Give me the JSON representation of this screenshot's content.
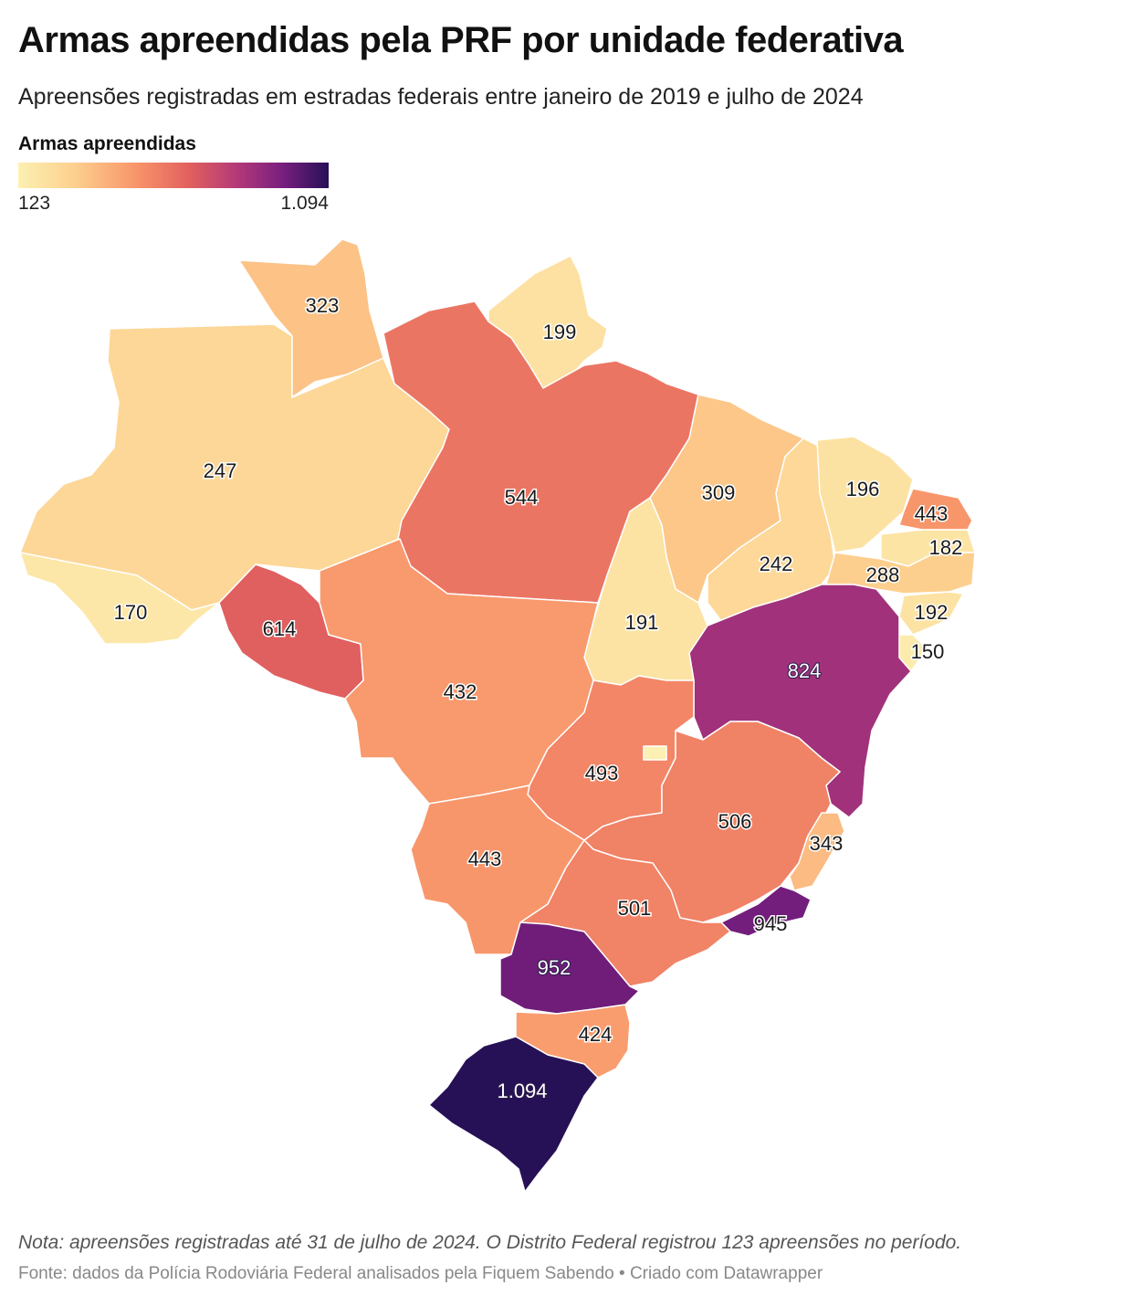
{
  "title": "Armas apreendidas pela PRF por unidade federativa",
  "subtitle": "Apreensões registradas em estradas federais entre janeiro de 2019 e julho de 2024",
  "legend": {
    "title": "Armas apreendidas",
    "min_label": "123",
    "max_label": "1.094",
    "min": 123,
    "max": 1094,
    "colors": [
      "#fcf0b2",
      "#fdd08f",
      "#f8956a",
      "#e2605e",
      "#b53a78",
      "#7a1f7f",
      "#261056"
    ]
  },
  "map": {
    "region": "Brasil",
    "states": {
      "RR": {
        "value": 323,
        "label": "323"
      },
      "AP": {
        "value": 199,
        "label": "199"
      },
      "AM": {
        "value": 247,
        "label": "247"
      },
      "PA": {
        "value": 544,
        "label": "544"
      },
      "MA": {
        "value": 309,
        "label": "309"
      },
      "CE": {
        "value": 196,
        "label": "196"
      },
      "RN": {
        "value": 443,
        "label": "443"
      },
      "PB": {
        "value": 182,
        "label": "182"
      },
      "PI": {
        "value": 242,
        "label": "242"
      },
      "PE": {
        "value": 288,
        "label": "288"
      },
      "AL": {
        "value": 192,
        "label": "192"
      },
      "SE": {
        "value": 150,
        "label": "150"
      },
      "AC": {
        "value": 170,
        "label": "170"
      },
      "RO": {
        "value": 614,
        "label": "614"
      },
      "TO": {
        "value": 191,
        "label": "191"
      },
      "BA": {
        "value": 824,
        "label": "824"
      },
      "MT": {
        "value": 432,
        "label": "432"
      },
      "GO": {
        "value": 493,
        "label": "493"
      },
      "DF": {
        "value": 123
      },
      "MG": {
        "value": 506,
        "label": "506"
      },
      "ES": {
        "value": 343,
        "label": "343"
      },
      "MS": {
        "value": 443,
        "label": "443"
      },
      "SP": {
        "value": 501,
        "label": "501"
      },
      "RJ": {
        "value": 945,
        "label": "945"
      },
      "PR": {
        "value": 952,
        "label": "952"
      },
      "SC": {
        "value": 424,
        "label": "424"
      },
      "RS": {
        "value": 1094,
        "label": "1.094"
      }
    }
  },
  "note": "Nota: apreensões registradas até 31 de julho de 2024. O Distrito Federal registrou 123 apreensões no período.",
  "source": "Fonte: dados da Polícia Rodoviária Federal analisados pela Fiquem Sabendo • Criado com Datawrapper"
}
